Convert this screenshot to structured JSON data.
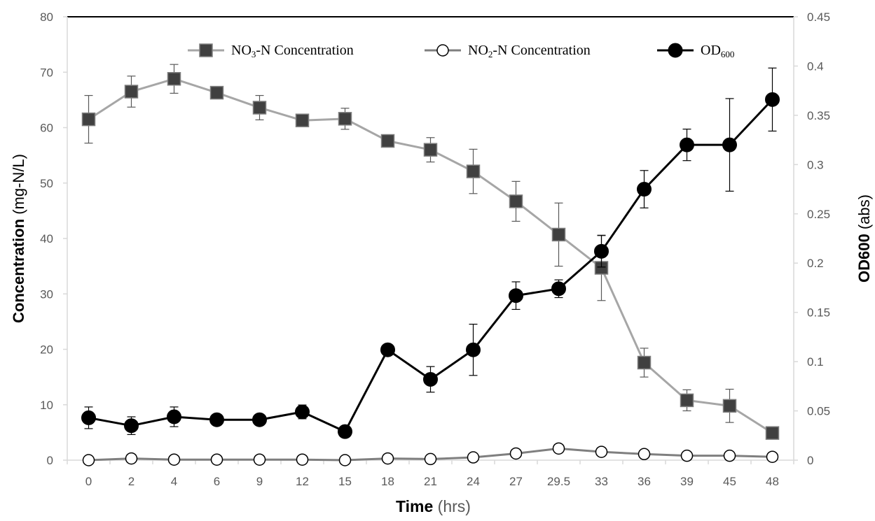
{
  "chart_data": {
    "type": "line",
    "categories": [
      "0",
      "2",
      "4",
      "6",
      "9",
      "12",
      "15",
      "18",
      "21",
      "24",
      "27",
      "29.5",
      "33",
      "36",
      "39",
      "45",
      "48"
    ],
    "x_axis": {
      "label_bold": "Time",
      "label_rest": " (hrs)"
    },
    "y_left": {
      "label_bold": "Concentration",
      "label_rest": "  (mg-N/L)",
      "ylim": [
        0,
        80
      ],
      "ticks": [
        "0",
        "10",
        "20",
        "30",
        "40",
        "50",
        "60",
        "70",
        "80"
      ],
      "tick_values": [
        0,
        10,
        20,
        30,
        40,
        50,
        60,
        70,
        80
      ]
    },
    "y_right": {
      "label_bold": "OD600",
      "label_rest": " (abs)",
      "ylim": [
        0,
        0.45
      ],
      "ticks": [
        "0",
        "0.05",
        "0.1",
        "0.15",
        "0.2",
        "0.25",
        "0.3",
        "0.35",
        "0.4",
        "0.45"
      ],
      "tick_values": [
        0,
        0.05,
        0.1,
        0.15,
        0.2,
        0.25,
        0.3,
        0.35,
        0.4,
        0.45
      ]
    },
    "grid": false,
    "legend_position": "top",
    "series": [
      {
        "name_main": "NO",
        "name_sub": "3",
        "name_rest": "-N Concentration",
        "axis": "left",
        "marker": "square",
        "color": "#a6a6a6",
        "marker_color": "#404040",
        "values": [
          61.5,
          66.5,
          68.8,
          66.3,
          63.6,
          61.3,
          61.6,
          57.6,
          56.0,
          52.1,
          46.7,
          40.7,
          34.7,
          17.6,
          10.8,
          9.8,
          4.9
        ],
        "errors": [
          4.3,
          2.8,
          2.6,
          0.8,
          2.2,
          0.6,
          1.9,
          0.6,
          2.2,
          4.0,
          3.6,
          5.7,
          5.9,
          2.6,
          1.9,
          3.0,
          0.8
        ]
      },
      {
        "name_main": "NO",
        "name_sub": "2",
        "name_rest": "-N Concentration",
        "axis": "left",
        "marker": "open-circle",
        "color": "#7f7f7f",
        "marker_color": "#000000",
        "values": [
          0.0,
          0.3,
          0.1,
          0.1,
          0.1,
          0.1,
          0.0,
          0.3,
          0.2,
          0.5,
          1.2,
          2.1,
          1.5,
          1.1,
          0.8,
          0.8,
          0.6
        ],
        "errors": [
          0,
          0,
          0,
          0,
          0,
          0,
          0,
          0,
          0,
          0.5,
          0.4,
          0.5,
          0.3,
          0.5,
          0.3,
          0.6,
          0.3
        ]
      },
      {
        "name_main": "OD",
        "name_sub": "600",
        "name_rest": "",
        "axis": "right",
        "marker": "filled-circle",
        "color": "#000000",
        "marker_color": "#000000",
        "values": [
          0.043,
          0.035,
          0.044,
          0.041,
          0.041,
          0.049,
          0.029,
          0.112,
          0.082,
          0.112,
          0.167,
          0.174,
          0.212,
          0.275,
          0.32,
          0.32,
          0.366
        ],
        "errors": [
          0.011,
          0.009,
          0.01,
          0.0,
          0.0,
          0.007,
          0.0,
          0.0,
          0.013,
          0.026,
          0.014,
          0.009,
          0.016,
          0.019,
          0.016,
          0.047,
          0.032
        ]
      }
    ]
  }
}
